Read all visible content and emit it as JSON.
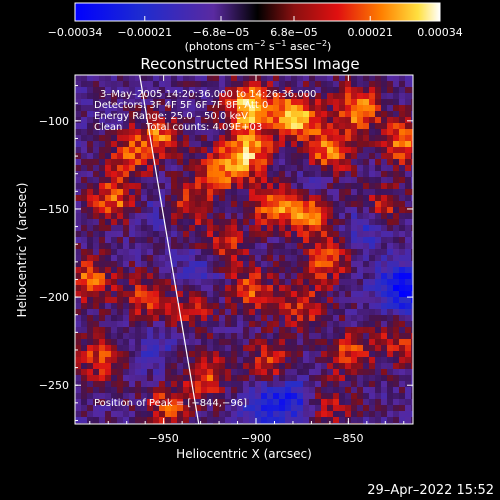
{
  "chart_data": {
    "type": "heatmap",
    "title": "Reconstructed RHESSI Image",
    "xlabel": "Heliocentric X (arcsec)",
    "ylabel": "Heliocentric Y (arcsec)",
    "x_ticks": [
      -950,
      -900,
      -850
    ],
    "x_tick_labels": [
      "−950",
      "−900",
      "−850"
    ],
    "y_ticks": [
      -100,
      -150,
      -200,
      -250
    ],
    "y_tick_labels": [
      "−100",
      "−150",
      "−200",
      "−250"
    ],
    "xlim": [
      -998,
      -815
    ],
    "ylim": [
      -272,
      -74
    ],
    "colorbar": {
      "range": [
        -0.00034,
        0.00034
      ],
      "ticks": [
        -0.00034,
        -0.00021,
        -6.8e-05,
        6.8e-05,
        0.00021,
        0.00034
      ],
      "tick_labels": [
        "−0.00034",
        "−0.00021",
        "−6.8e−05",
        "6.8e−05",
        "0.00021",
        "0.00034"
      ],
      "unit_prefix": "(photons cm",
      "unit_exp1": "−2",
      "unit_mid1": " s",
      "unit_exp2": "−1",
      "unit_mid2": " asec",
      "unit_exp3": "−2",
      "unit_suffix": ")"
    },
    "annotations": {
      "time_range": "3–May–2005 14:20:36.000 to 14:26:36.000",
      "detectors": "Detectors: 3F 4F 5F 6F 7F 8F, Att 0",
      "energy": "Energy Range: 25.0 – 50.0 keV",
      "method": "Clean",
      "counts": "Total counts: 4.09E+03",
      "peak": "Position of Peak = [−844,−96]"
    },
    "limb_line": [
      [
        -963,
        -74
      ],
      [
        -931,
        -272
      ]
    ],
    "peak_position": [
      -844,
      -96
    ],
    "hotspots": [
      {
        "x": -903,
        "y": -92,
        "v": 1.0
      },
      {
        "x": -878,
        "y": -98,
        "v": 0.9
      },
      {
        "x": -905,
        "y": -118,
        "v": 0.85
      },
      {
        "x": -860,
        "y": -118,
        "v": 0.75
      },
      {
        "x": -820,
        "y": -112,
        "v": 0.7
      },
      {
        "x": -845,
        "y": -93,
        "v": 0.75
      },
      {
        "x": -952,
        "y": -108,
        "v": 0.6
      },
      {
        "x": -978,
        "y": -145,
        "v": 0.65
      },
      {
        "x": -990,
        "y": -190,
        "v": 0.6
      },
      {
        "x": -985,
        "y": -235,
        "v": 0.55
      },
      {
        "x": -938,
        "y": -148,
        "v": 0.6
      },
      {
        "x": -918,
        "y": -172,
        "v": 0.55
      },
      {
        "x": -889,
        "y": -148,
        "v": 0.7
      },
      {
        "x": -870,
        "y": -152,
        "v": 0.7
      },
      {
        "x": -862,
        "y": -178,
        "v": 0.6
      },
      {
        "x": -832,
        "y": -150,
        "v": 0.5
      },
      {
        "x": -902,
        "y": -196,
        "v": 0.55
      },
      {
        "x": -874,
        "y": -205,
        "v": 0.5
      },
      {
        "x": -936,
        "y": -208,
        "v": 0.45
      },
      {
        "x": -960,
        "y": -200,
        "v": 0.5
      },
      {
        "x": -928,
        "y": -245,
        "v": 0.55
      },
      {
        "x": -892,
        "y": -236,
        "v": 0.5
      },
      {
        "x": -850,
        "y": -232,
        "v": 0.55
      },
      {
        "x": -822,
        "y": -226,
        "v": 0.45
      },
      {
        "x": -948,
        "y": -262,
        "v": 0.5
      },
      {
        "x": -862,
        "y": -262,
        "v": 0.45
      },
      {
        "x": -968,
        "y": -120,
        "v": 0.5
      },
      {
        "x": -920,
        "y": -130,
        "v": 0.55
      }
    ],
    "coldspots": [
      {
        "x": -840,
        "y": -160,
        "v": -0.45
      },
      {
        "x": -825,
        "y": -195,
        "v": -0.5
      },
      {
        "x": -815,
        "y": -195,
        "v": -0.55
      },
      {
        "x": -895,
        "y": -262,
        "v": -0.55
      },
      {
        "x": -878,
        "y": -258,
        "v": -0.5
      },
      {
        "x": -930,
        "y": -185,
        "v": -0.35
      },
      {
        "x": -955,
        "y": -230,
        "v": -0.3
      },
      {
        "x": -870,
        "y": -135,
        "v": -0.3
      },
      {
        "x": -950,
        "y": -150,
        "v": -0.3
      }
    ]
  },
  "footer": {
    "timestamp": "29–Apr–2022 15:52"
  }
}
